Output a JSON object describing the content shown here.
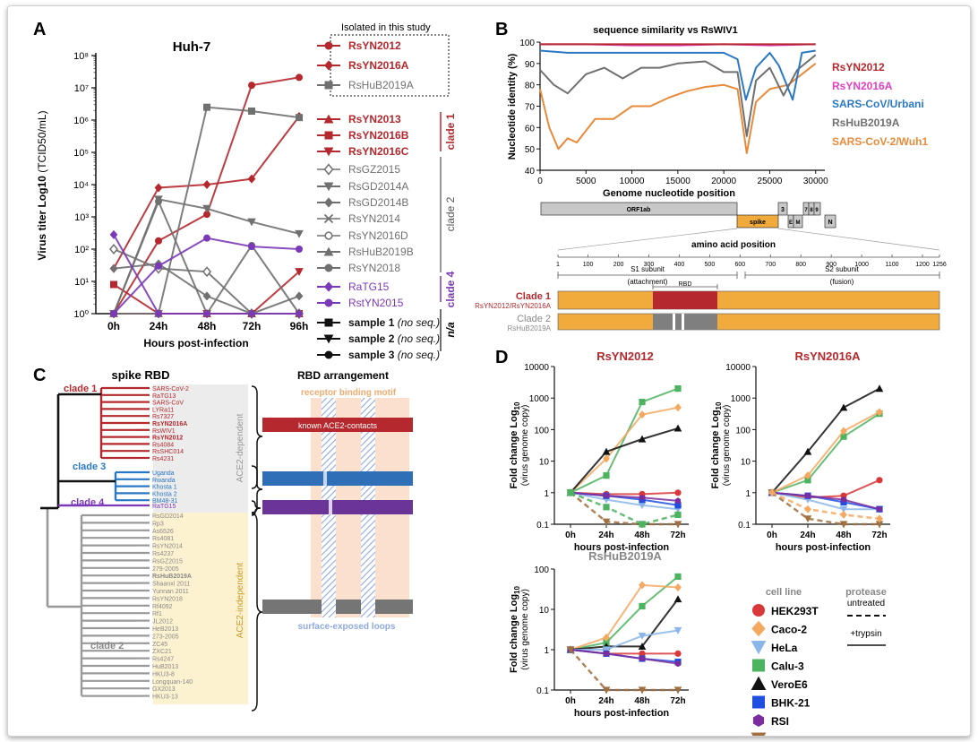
{
  "panels": {
    "a": "A",
    "b": "B",
    "c": "C",
    "d": "D"
  },
  "colors": {
    "red": "#b5282d",
    "pink": "#e23ec0",
    "blue": "#2a78c4",
    "gray": "#707070",
    "orange": "#e98a3b",
    "purple": "#7b39b8",
    "green": "#4cb35f"
  },
  "panelA": {
    "title": "Huh-7",
    "ylabel": "Virus titer Log10",
    "ylabel_unit": "(TCID50/mL)",
    "xlabel": "Hours post-infection",
    "xticks": [
      "0h",
      "24h",
      "48h",
      "72h",
      "96h"
    ],
    "yticks": [
      "10⁰",
      "10¹",
      "10²",
      "10³",
      "10⁴",
      "10⁵",
      "10⁶",
      "10⁷",
      "10⁸"
    ],
    "legend_box_title": "Isolated in this study",
    "legend": [
      {
        "name": "RsYN2012",
        "color": "#b5282d",
        "marker": "circle",
        "bold": true
      },
      {
        "name": "RsYN2016A",
        "color": "#b5282d",
        "marker": "diamond",
        "bold": true
      },
      {
        "name": "RsHuB2019A",
        "color": "#707070",
        "marker": "square",
        "bold": false
      },
      {
        "name": "RsYN2013",
        "color": "#b5282d",
        "marker": "triangle",
        "bold": true
      },
      {
        "name": "RsYN2016B",
        "color": "#b5282d",
        "marker": "square",
        "bold": true
      },
      {
        "name": "RsYN2016C",
        "color": "#b5282d",
        "marker": "tridown",
        "bold": true
      },
      {
        "name": "RsGZ2015",
        "color": "#707070",
        "marker": "odiamond",
        "bold": false
      },
      {
        "name": "RsGD2014A",
        "color": "#707070",
        "marker": "tridown",
        "bold": false
      },
      {
        "name": "RsGD2014B",
        "color": "#707070",
        "marker": "diamond",
        "bold": false
      },
      {
        "name": "RsYN2014",
        "color": "#707070",
        "marker": "x",
        "bold": false
      },
      {
        "name": "RsYN2016D",
        "color": "#707070",
        "marker": "ocircle",
        "bold": false
      },
      {
        "name": "RsHuB2019B",
        "color": "#707070",
        "marker": "triangle",
        "bold": false
      },
      {
        "name": "RsYN2018",
        "color": "#707070",
        "marker": "circle",
        "bold": false
      },
      {
        "name": "RaTG15",
        "color": "#7b39b8",
        "marker": "diamond",
        "bold": false
      },
      {
        "name": "RstYN2015",
        "color": "#7b39b8",
        "marker": "circle",
        "bold": false
      },
      {
        "name": "sample 1",
        "note": "(no seq.)",
        "color": "#111",
        "marker": "square",
        "bold": true
      },
      {
        "name": "sample 2",
        "note": "(no seq.)",
        "color": "#111",
        "marker": "tridown",
        "bold": true
      },
      {
        "name": "sample 3",
        "note": "(no seq.)",
        "color": "#111",
        "marker": "circle",
        "bold": true
      }
    ],
    "clades": [
      "clade 1",
      "clade 2",
      "clade 4",
      "n/a"
    ]
  },
  "chart_data": [
    {
      "panel": "A",
      "type": "line",
      "title": "Huh-7",
      "xlabel": "Hours post-infection",
      "ylabel": "Virus titer Log10 (TCID50/mL)",
      "yscale": "log",
      "ylim": [
        1,
        100000000
      ],
      "categories": [
        "0h",
        "24h",
        "48h",
        "72h",
        "96h"
      ],
      "series": [
        {
          "name": "RsYN2012",
          "values": [
            1,
            180,
            1200,
            12000000,
            21000000
          ],
          "color": "#b5282d",
          "marker": "circle"
        },
        {
          "name": "RsYN2016A",
          "values": [
            25,
            8000,
            10000,
            15000,
            1300000
          ],
          "color": "#b5282d",
          "marker": "diamond"
        },
        {
          "name": "RsYN2013",
          "values": [
            1,
            1,
            1,
            1,
            1
          ],
          "color": "#b5282d",
          "marker": "triangle"
        },
        {
          "name": "RsYN2016B",
          "values": [
            8,
            1,
            1,
            1,
            1
          ],
          "color": "#b5282d",
          "marker": "square"
        },
        {
          "name": "RsYN2016C",
          "values": [
            1,
            1,
            1,
            1,
            20
          ],
          "color": "#b5282d",
          "marker": "tridown"
        },
        {
          "name": "RsHuB2019A",
          "values": [
            1,
            1,
            2500000,
            1900000,
            1200000
          ],
          "color": "#707070",
          "marker": "square"
        },
        {
          "name": "RsGD2014A",
          "values": [
            1,
            3500,
            1800,
            700,
            300
          ],
          "color": "#707070",
          "marker": "tridown"
        },
        {
          "name": "RsGD2014B",
          "values": [
            25,
            35,
            3.5,
            1,
            3.5
          ],
          "color": "#707070",
          "marker": "diamond"
        },
        {
          "name": "RsGZ2015",
          "values": [
            100,
            25,
            20,
            1,
            1
          ],
          "color": "#707070",
          "marker": "odiamond"
        },
        {
          "name": "RsYN2018",
          "values": [
            1,
            3000,
            1,
            130,
            1
          ],
          "color": "#707070",
          "marker": "circle"
        },
        {
          "name": "RaTG15",
          "values": [
            280,
            1,
            1,
            1,
            1
          ],
          "color": "#7b39b8",
          "marker": "diamond"
        },
        {
          "name": "RstYN2015",
          "values": [
            1,
            30,
            220,
            120,
            100
          ],
          "color": "#7b39b8",
          "marker": "circle"
        }
      ]
    },
    {
      "panel": "B",
      "type": "line",
      "title": "sequence similarity vs RsWIV1",
      "xlabel": "Genome nucleotide position",
      "ylabel": "Nucleotide identity (%)",
      "ylim": [
        40,
        100
      ],
      "xlim": [
        0,
        31000
      ],
      "series": [
        {
          "name": "RsYN2012",
          "color": "#b5282d",
          "x": [
            0,
            5000,
            10000,
            15000,
            20000,
            22000,
            23000,
            25000,
            30000
          ],
          "y": [
            99,
            99,
            99,
            99,
            99,
            99,
            99,
            99,
            99
          ]
        },
        {
          "name": "RsYN2016A",
          "color": "#e23ec0",
          "x": [
            0,
            5000,
            10000,
            15000,
            20000,
            25000,
            30000
          ],
          "y": [
            99,
            99,
            98.5,
            98.5,
            99,
            98.5,
            99
          ]
        },
        {
          "name": "SARS-CoV/Urbani",
          "color": "#2a78c4",
          "x": [
            0,
            3000,
            6000,
            9000,
            12000,
            15000,
            18000,
            20000,
            21500,
            22400,
            23500,
            25000,
            26000,
            27500,
            28500,
            30000
          ],
          "y": [
            96,
            95,
            95,
            95,
            95,
            95,
            95,
            95,
            92,
            73,
            88,
            95,
            89,
            73,
            95,
            96
          ]
        },
        {
          "name": "RsHuB2019A",
          "color": "#707070",
          "x": [
            0,
            1500,
            3000,
            5000,
            7000,
            9000,
            11000,
            13000,
            15000,
            18000,
            20000,
            21500,
            22500,
            23500,
            25000,
            26500,
            28000,
            30000
          ],
          "y": [
            87,
            80,
            76,
            85,
            88,
            83,
            88,
            88,
            90,
            91,
            86,
            86,
            56,
            82,
            88,
            75,
            87,
            94
          ]
        },
        {
          "name": "SARS-CoV-2/Wuh1",
          "color": "#e98a3b",
          "x": [
            0,
            1000,
            2000,
            3000,
            4000,
            6000,
            8000,
            10000,
            12000,
            14000,
            16000,
            18000,
            20000,
            21500,
            22500,
            23500,
            25000,
            27000,
            28500,
            30000
          ],
          "y": [
            78,
            60,
            50,
            55,
            53,
            64,
            64,
            70,
            70,
            74,
            77,
            79,
            80,
            78,
            48,
            72,
            78,
            80,
            85,
            90
          ]
        }
      ]
    },
    {
      "panel": "D",
      "title": "RsYN2012",
      "type": "line",
      "yscale": "log",
      "ylim": [
        0.1,
        10000
      ],
      "categories": [
        "0h",
        "24h",
        "48h",
        "72h"
      ],
      "xlabel": "hours post-infection",
      "ylabel": "Fold change Log10 (virus genome copy)",
      "series": [
        {
          "name": "Calu-3",
          "values": [
            1,
            3.5,
            750,
            2000
          ]
        },
        {
          "name": "Caco-2",
          "values": [
            1,
            12,
            300,
            500
          ]
        },
        {
          "name": "VeroE6",
          "values": [
            1,
            20,
            50,
            110
          ]
        },
        {
          "name": "HEK293T",
          "values": [
            1,
            0.9,
            0.9,
            1
          ]
        },
        {
          "name": "HeLa",
          "values": [
            1,
            0.6,
            0.4,
            0.3
          ]
        },
        {
          "name": "BHK-21",
          "values": [
            1,
            0.8,
            0.6,
            0.4
          ]
        },
        {
          "name": "RSI",
          "values": [
            1,
            0.8,
            0.7,
            0.55
          ]
        },
        {
          "name": "RSL (untreated)",
          "values": [
            1,
            0.12,
            0.1,
            0.1
          ]
        },
        {
          "name": "Calu-3 (untreated)",
          "values": [
            1,
            0.35,
            0.1,
            0.2
          ]
        }
      ]
    },
    {
      "panel": "D",
      "title": "RsYN2016A",
      "type": "line",
      "yscale": "log",
      "ylim": [
        0.1,
        10000
      ],
      "categories": [
        "0h",
        "24h",
        "48h",
        "72h"
      ],
      "xlabel": "hours post-infection",
      "ylabel": "Fold change Log10 (virus genome copy)",
      "series": [
        {
          "name": "VeroE6",
          "values": [
            1,
            20,
            500,
            2000
          ]
        },
        {
          "name": "Calu-3",
          "values": [
            1,
            2.5,
            60,
            320
          ]
        },
        {
          "name": "Caco-2",
          "values": [
            1,
            3.5,
            90,
            360
          ]
        },
        {
          "name": "HEK293T",
          "values": [
            1,
            0.7,
            0.8,
            2.5
          ]
        },
        {
          "name": "HeLa",
          "values": [
            1,
            0.6,
            0.3,
            0.3
          ]
        },
        {
          "name": "BHK-21",
          "values": [
            1,
            0.8,
            0.5,
            0.3
          ]
        },
        {
          "name": "RSI",
          "values": [
            1,
            0.8,
            0.6,
            0.3
          ]
        },
        {
          "name": "RSL (untreated)",
          "values": [
            1,
            0.15,
            0.1,
            0.1
          ]
        },
        {
          "name": "Caco-2 (untreated)",
          "values": [
            1,
            0.3,
            0.2,
            0.15
          ]
        }
      ]
    },
    {
      "panel": "D",
      "title": "RsHuB2019A",
      "type": "line",
      "yscale": "log",
      "ylim": [
        0.1,
        100
      ],
      "categories": [
        "0h",
        "24h",
        "48h",
        "72h"
      ],
      "xlabel": "hours post-infection",
      "ylabel": "Fold change Log10 (virus genome copy)",
      "series": [
        {
          "name": "Calu-3",
          "values": [
            1,
            1.5,
            12,
            65
          ]
        },
        {
          "name": "Caco-2",
          "values": [
            1,
            2,
            40,
            35
          ]
        },
        {
          "name": "VeroE6",
          "values": [
            1,
            1.2,
            1.2,
            18
          ]
        },
        {
          "name": "HeLa",
          "values": [
            1,
            1,
            2.2,
            3
          ]
        },
        {
          "name": "HEK293T",
          "values": [
            1,
            0.8,
            0.8,
            0.8
          ]
        },
        {
          "name": "BHK-21",
          "values": [
            1,
            0.8,
            0.6,
            0.5
          ]
        },
        {
          "name": "RSI",
          "values": [
            1,
            0.8,
            0.6,
            0.45
          ]
        },
        {
          "name": "RSL (untreated)",
          "values": [
            1,
            0.1,
            0.1,
            0.1
          ]
        }
      ]
    }
  ],
  "panelB": {
    "title": "sequence similarity vs RsWIV1",
    "ylabel": "Nucleotide identity (%)",
    "xlabel": "Genome nucleotide position",
    "xticks": [
      "0",
      "5000",
      "10000",
      "15000",
      "20000",
      "25000",
      "30000"
    ],
    "yticks": [
      "40",
      "50",
      "60",
      "70",
      "80",
      "90",
      "100"
    ],
    "legend": [
      {
        "name": "RsYN2012",
        "color": "#b5282d"
      },
      {
        "name": "RsYN2016A",
        "color": "#e23ec0"
      },
      {
        "name": "SARS-CoV/Urbani",
        "color": "#2a78c4"
      },
      {
        "name": "RsHuB2019A",
        "color": "#707070"
      },
      {
        "name": "SARS-CoV-2/Wuh1",
        "color": "#e98a3b"
      }
    ],
    "genes": {
      "orf1ab": "ORF1ab",
      "spike": "spike",
      "g3": "3",
      "e": "E",
      "m": "M",
      "g7": "7",
      "g8": "8",
      "g9": "9",
      "n": "N"
    },
    "aa_title": "amino acid position",
    "aa_ticks": [
      "1",
      "100",
      "200",
      "300",
      "400",
      "500",
      "600",
      "700",
      "800",
      "900",
      "1000",
      "1100",
      "1200",
      "1256"
    ],
    "s1": "S1 subunit",
    "s1_note": "(attachment)",
    "s2": "S2 subunit",
    "s2_note": "(fusion)",
    "rbd": "RBD",
    "clade1_label": "Clade 1",
    "clade1_members": "RsYN2012/RsYN2016A",
    "clade2_label": "Clade 2",
    "clade2_members": "RsHuB2019A"
  },
  "panelC": {
    "title": "spike RBD",
    "arrangement_title": "RBD arrangement",
    "rbm_label": "receptor binding motif",
    "loops_label": "surface-exposed loops",
    "ace2_contacts": "known ACE2-contacts",
    "ace2_dep": "ACE2-dependent",
    "ace2_indep": "ACE2-independent",
    "clades": [
      "clade 1",
      "clade 3",
      "clade 4",
      "clade 2"
    ],
    "taxa_clade1": [
      "SARS-CoV-2",
      "RaTG13",
      "SARS-CoV",
      "LYRa11",
      "Rs7327",
      "RsYN2016A",
      "RsWIV1",
      "RsYN2012",
      "Rs4084",
      "RsSHC014",
      "Rs4231"
    ],
    "taxa_clade3": [
      "Uganda",
      "Rwanda",
      "Khosta 1",
      "Khosta 2",
      "BM48-31"
    ],
    "taxa_clade4": [
      "RaTG15"
    ],
    "taxa_clade2": [
      "RsGD2014",
      "Rp3",
      "As6526",
      "Rs4081",
      "RsYN2014",
      "Rs4237",
      "RsGZ2015",
      "279-2005",
      "RsHuB2019A",
      "Shaanxi 2011",
      "Yunnan 2011",
      "RsYN2018",
      "Rf4092",
      "Rf1",
      "JL2012",
      "HeB2013",
      "273-2005",
      "ZC45",
      "ZXC21",
      "Rs4247",
      "HuB2013",
      "HKU3-8",
      "Longquan-140",
      "GX2013",
      "HKU3-13"
    ]
  },
  "panelD": {
    "titles": [
      "RsYN2012",
      "RsYN2016A",
      "RsHuB2019A"
    ],
    "xticks": [
      "0h",
      "24h",
      "48h",
      "72h"
    ],
    "xlabel": "hours post-infection",
    "ylabel": "Fold change Log",
    "ylabel_sub": "10",
    "ylabel2": "(virus genome copy)",
    "yticks_big": [
      "0.1",
      "1",
      "10",
      "100",
      "1000",
      "10000"
    ],
    "yticks_small": [
      "0.1",
      "1",
      "10",
      "100"
    ],
    "legend_title": "cell line",
    "protease_title": "protease",
    "untreated": "untreated",
    "trypsin": "+trypsin",
    "cells": [
      {
        "name": "HEK293T",
        "color": "#d9383b",
        "marker": "circle"
      },
      {
        "name": "Caco-2",
        "color": "#f4a860",
        "marker": "diamond"
      },
      {
        "name": "HeLa",
        "color": "#8ab6ea",
        "marker": "tridown"
      },
      {
        "name": "Calu-3",
        "color": "#4cb35f",
        "marker": "square"
      },
      {
        "name": "VeroE6",
        "color": "#111111",
        "marker": "triangle"
      },
      {
        "name": "BHK-21",
        "color": "#1f4fe0",
        "marker": "square"
      },
      {
        "name": "RSI",
        "color": "#7b2c9e",
        "marker": "hexagon"
      },
      {
        "name": "RSL",
        "color": "#a07040",
        "marker": "tridown"
      }
    ]
  }
}
